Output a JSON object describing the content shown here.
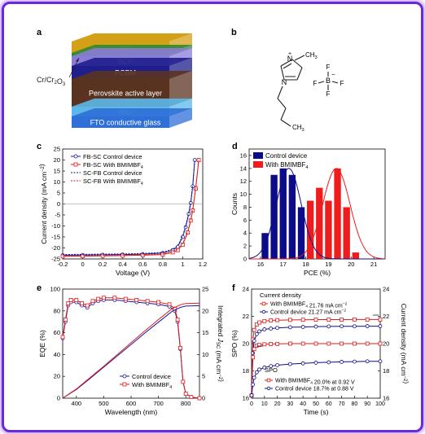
{
  "panel_a": {
    "letter": "a",
    "layers": [
      {
        "label": "Au",
        "color": "#d4a017"
      },
      {
        "label": "",
        "color": "#2e8b2e"
      },
      {
        "label": "BCP",
        "color": "#8b7bd8"
      },
      {
        "label": "PCBM",
        "color": "#1e1e8c"
      },
      {
        "label": "Perovskite active layer",
        "color": "#5a3320"
      },
      {
        "label": "NiO",
        "color": "#5bb8e8"
      },
      {
        "label": "FTO conductive glass",
        "color": "#2f6fd8"
      }
    ],
    "callout": "Cr/Cr2O3"
  },
  "panel_b": {
    "letter": "b",
    "atoms": {
      "n_plus": "N",
      "plus": "+",
      "methyl": "CH3",
      "n": "N",
      "terminal_methyl": "CH3",
      "boron": "B",
      "minus": "−",
      "fluorine": "F"
    }
  },
  "chart_data": [
    {
      "panel": "c",
      "type": "line",
      "xlabel": "Voltage (V)",
      "ylabel": "Current density (mA cm−2)",
      "xlim": [
        -0.2,
        1.2
      ],
      "ylim": [
        -25,
        25
      ],
      "xticks": [
        -0.2,
        0.0,
        0.2,
        0.4,
        0.6,
        0.8,
        1.0,
        1.2
      ],
      "yticks": [
        -25,
        -20,
        -15,
        -10,
        -5,
        0,
        5,
        10,
        15,
        20,
        25
      ],
      "legend_position": "top-left",
      "series": [
        {
          "name": "FB-SC Control device",
          "color": "#1a1a9a",
          "dash": false,
          "marker": "circle",
          "x": [
            -0.2,
            0.0,
            0.2,
            0.4,
            0.6,
            0.8,
            0.9,
            0.95,
            1.0,
            1.03,
            1.06,
            1.08,
            1.1,
            1.12
          ],
          "y": [
            -23.3,
            -23.2,
            -23.1,
            -23.0,
            -22.8,
            -22.3,
            -21.0,
            -19.5,
            -15.0,
            -10.5,
            -4.5,
            0.5,
            8.0,
            20.0
          ]
        },
        {
          "name": "FB-SC With BMIMBF4",
          "color": "#e01a1a",
          "dash": false,
          "marker": "square",
          "x": [
            -0.2,
            0.0,
            0.2,
            0.4,
            0.6,
            0.8,
            0.9,
            0.95,
            1.0,
            1.05,
            1.08,
            1.1,
            1.13,
            1.16
          ],
          "y": [
            -23.8,
            -23.7,
            -23.6,
            -23.5,
            -23.3,
            -23.0,
            -22.0,
            -21.0,
            -18.5,
            -13.0,
            -7.5,
            -3.0,
            7.0,
            20.0
          ]
        },
        {
          "name": "SC-FB Control device",
          "color": "#1a1a9a",
          "dash": true,
          "marker": "none",
          "x": [
            -0.2,
            0.0,
            0.2,
            0.4,
            0.6,
            0.8,
            0.9,
            0.95,
            1.0,
            1.03,
            1.06,
            1.08,
            1.1,
            1.12
          ],
          "y": [
            -23.0,
            -22.9,
            -22.8,
            -22.7,
            -22.5,
            -22.0,
            -20.6,
            -19.0,
            -14.5,
            -10.0,
            -4.0,
            1.0,
            8.5,
            20.0
          ]
        },
        {
          "name": "SC-FB With BMIMBF4",
          "color": "#e01a1a",
          "dash": true,
          "marker": "none",
          "x": [
            -0.2,
            0.0,
            0.2,
            0.4,
            0.6,
            0.8,
            0.9,
            0.95,
            1.0,
            1.05,
            1.08,
            1.1,
            1.13,
            1.16
          ],
          "y": [
            -23.6,
            -23.5,
            -23.4,
            -23.3,
            -23.1,
            -22.8,
            -21.7,
            -20.7,
            -18.0,
            -12.5,
            -7.0,
            -2.5,
            7.5,
            20.0
          ]
        }
      ]
    },
    {
      "panel": "d",
      "type": "bar",
      "xlabel": "PCE (%)",
      "ylabel": "Counts",
      "xlim": [
        15.5,
        21.5
      ],
      "ylim": [
        0,
        17
      ],
      "xticks": [
        16,
        17,
        18,
        19,
        20,
        21
      ],
      "yticks": [
        0,
        2,
        4,
        6,
        8,
        10,
        12,
        14,
        16
      ],
      "bin_width": 0.4,
      "legend_position": "top-left",
      "series": [
        {
          "name": "Control device",
          "color": "#0c0c8a",
          "x": [
            16.2,
            16.6,
            17.0,
            17.4,
            17.8,
            18.2
          ],
          "values": [
            4,
            13,
            14,
            13,
            8,
            1
          ]
        },
        {
          "name": "With BMIMBF4",
          "color": "#ee1c1c",
          "x": [
            18.2,
            18.6,
            19.0,
            19.4,
            19.8,
            20.2
          ],
          "values": [
            9,
            11,
            9,
            14,
            8,
            1
          ]
        }
      ],
      "fits": [
        {
          "series": "Control device",
          "color": "#0c0c8a",
          "mean": 17.25,
          "sigma": 0.55,
          "peak": 14.0
        },
        {
          "series": "With BMIMBF4",
          "color": "#ee1c1c",
          "mean": 19.35,
          "sigma": 0.6,
          "peak": 14.0
        }
      ]
    },
    {
      "panel": "e",
      "type": "line",
      "xlabel": "Wavelength (nm)",
      "ylabel": "EQE (%)",
      "y2label": "Integrated JSC (mA cm−2)",
      "xlim": [
        350,
        850
      ],
      "ylim": [
        0,
        100
      ],
      "y2lim": [
        0,
        25
      ],
      "xticks": [
        400,
        500,
        600,
        700,
        800
      ],
      "yticks": [
        0,
        20,
        40,
        60,
        80,
        100
      ],
      "y2ticks": [
        0,
        5,
        10,
        15,
        20,
        25
      ],
      "legend_position": "bottom-right",
      "series": [
        {
          "name": "Control device",
          "color": "#1a1a9a",
          "axis": "left",
          "marker": "circle",
          "x": [
            350,
            360,
            370,
            380,
            400,
            420,
            440,
            460,
            480,
            500,
            540,
            580,
            620,
            660,
            700,
            740,
            760,
            770,
            780,
            790,
            800,
            820,
            850
          ],
          "y": [
            55,
            70,
            85,
            88,
            88,
            85,
            83,
            87,
            89,
            90,
            90,
            89,
            88,
            87,
            86,
            84,
            80,
            70,
            45,
            15,
            4,
            1,
            0
          ]
        },
        {
          "name": "With BMIMBF4",
          "color": "#e01a1a",
          "axis": "left",
          "marker": "square",
          "x": [
            350,
            360,
            370,
            380,
            400,
            420,
            440,
            460,
            480,
            500,
            540,
            580,
            620,
            660,
            700,
            740,
            760,
            770,
            780,
            790,
            800,
            820,
            850
          ],
          "y": [
            56,
            72,
            87,
            90,
            90,
            87,
            85,
            89,
            91,
            92,
            92,
            91,
            90,
            89,
            88,
            86,
            82,
            72,
            46,
            15,
            4,
            1,
            0
          ]
        },
        {
          "name": "Control device integrated JSC",
          "color": "#1a1a9a",
          "axis": "right",
          "marker": "none",
          "x": [
            350,
            400,
            450,
            500,
            550,
            600,
            650,
            700,
            750,
            780,
            800,
            850
          ],
          "y": [
            0,
            2.0,
            4.5,
            7.1,
            9.7,
            12.3,
            14.9,
            17.4,
            19.9,
            20.8,
            21.1,
            21.2
          ]
        },
        {
          "name": "With BMIMBF4 integrated JSC",
          "color": "#e01a1a",
          "axis": "right",
          "marker": "none",
          "x": [
            350,
            400,
            450,
            500,
            550,
            600,
            650,
            700,
            750,
            780,
            800,
            850
          ],
          "y": [
            0,
            2.1,
            4.7,
            7.3,
            10.0,
            12.7,
            15.4,
            18.0,
            20.5,
            21.4,
            21.7,
            21.8
          ]
        }
      ]
    },
    {
      "panel": "f",
      "type": "line",
      "xlabel": "Time (s)",
      "ylabel": "SPO (%)",
      "y2label": "Current density (mA cm−2)",
      "xlim": [
        0,
        100
      ],
      "ylim": [
        16,
        24
      ],
      "y2lim": [
        16,
        24
      ],
      "xticks": [
        0,
        10,
        20,
        30,
        40,
        50,
        60,
        70,
        80,
        90,
        100
      ],
      "yticks": [
        16,
        18,
        20,
        22,
        24
      ],
      "y2ticks": [
        16,
        18,
        20,
        22,
        24
      ],
      "legend_groups": {
        "current_density": "Current density",
        "spo": "SPO"
      },
      "series": [
        {
          "name": "With BMIMBF4 21.76 mA cm−2",
          "group": "current_density",
          "color": "#e01a1a",
          "marker": "square",
          "x": [
            0,
            1,
            2,
            4,
            6,
            10,
            15,
            20,
            30,
            40,
            50,
            60,
            70,
            80,
            90,
            100
          ],
          "y": [
            16.2,
            20.3,
            21.0,
            21.4,
            21.55,
            21.65,
            21.7,
            21.72,
            21.74,
            21.75,
            21.76,
            21.76,
            21.76,
            21.77,
            21.77,
            21.77
          ]
        },
        {
          "name": "Control device 21.27 mA cm−2",
          "group": "current_density",
          "color": "#0c0c8a",
          "marker": "circle",
          "x": [
            0,
            1,
            2,
            4,
            6,
            10,
            15,
            20,
            30,
            40,
            50,
            60,
            70,
            80,
            90,
            100
          ],
          "y": [
            16.2,
            19.3,
            20.2,
            20.7,
            20.9,
            21.05,
            21.1,
            21.15,
            21.2,
            21.22,
            21.25,
            21.26,
            21.27,
            21.27,
            21.28,
            21.28
          ]
        },
        {
          "name": "With BMIMBF4 20.0% at 0.92 V",
          "group": "spo",
          "color": "#e01a1a",
          "marker": "square",
          "x": [
            0,
            1,
            2,
            4,
            6,
            10,
            15,
            20,
            30,
            40,
            50,
            60,
            70,
            80,
            90,
            100
          ],
          "y": [
            16.2,
            19.0,
            19.6,
            19.85,
            19.9,
            19.95,
            19.97,
            19.98,
            20.0,
            20.0,
            20.0,
            20.0,
            20.0,
            20.0,
            20.0,
            20.0
          ]
        },
        {
          "name": "Control device 18.7% at 0.88 V",
          "group": "spo",
          "color": "#0c0c8a",
          "marker": "circle",
          "x": [
            0,
            1,
            2,
            4,
            6,
            10,
            15,
            20,
            30,
            40,
            50,
            60,
            70,
            80,
            90,
            100
          ],
          "y": [
            16.2,
            17.0,
            17.5,
            17.9,
            18.1,
            18.25,
            18.35,
            18.42,
            18.5,
            18.55,
            18.6,
            18.63,
            18.66,
            18.68,
            18.7,
            18.7
          ]
        }
      ]
    }
  ]
}
